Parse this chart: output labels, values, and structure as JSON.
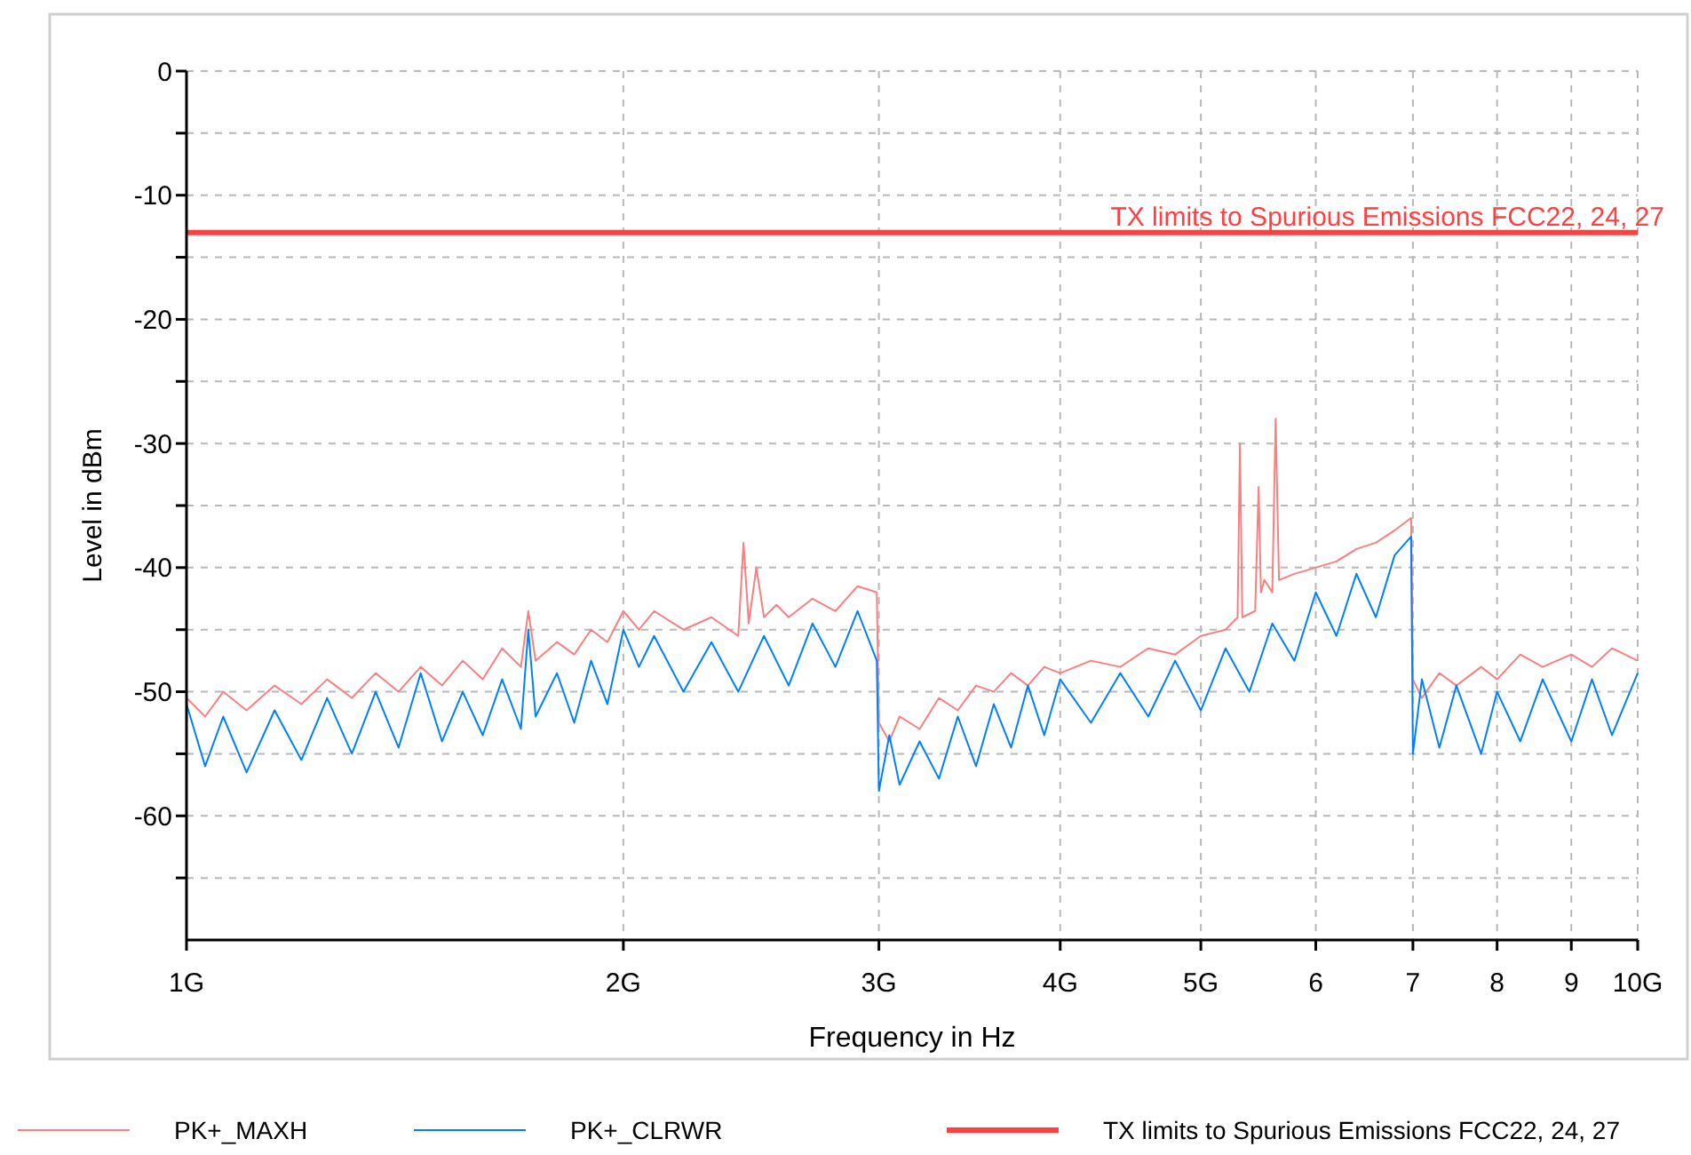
{
  "chart_data": {
    "type": "line",
    "xlabel": "Frequency in Hz",
    "ylabel": "Level in dBm",
    "log": "x",
    "xlim": [
      1,
      10
    ],
    "ylim": [
      -70,
      0
    ],
    "xticks": [
      {
        "value": 1,
        "label": "1G"
      },
      {
        "value": 2,
        "label": "2G"
      },
      {
        "value": 3,
        "label": "3G"
      },
      {
        "value": 4,
        "label": "4G"
      },
      {
        "value": 5,
        "label": "5G"
      },
      6,
      7,
      8,
      9,
      {
        "value": 10,
        "label": "10G"
      }
    ],
    "yticks": [
      0,
      {
        "value": -5,
        "label": null
      },
      -10,
      {
        "value": -15,
        "label": null
      },
      -20,
      {
        "value": -25,
        "label": null
      },
      -30,
      {
        "value": -35,
        "label": null
      },
      -40,
      {
        "value": -45,
        "label": null
      },
      -50,
      {
        "value": -55,
        "label": null
      },
      -60,
      {
        "value": -65,
        "label": null
      }
    ],
    "grid": true,
    "legend": "bottom",
    "line_style": "solid",
    "marker": "none",
    "ref_lines": [
      {
        "axis": "y",
        "value": -13,
        "label": "TX limits to Spurious Emissions FCC22, 24, 27",
        "color": "#ff4040"
      }
    ],
    "series": [
      {
        "name": "PK+_MAXH",
        "color": "#f88080",
        "x": [
          1,
          1.03,
          1.06,
          1.1,
          1.15,
          1.2,
          1.25,
          1.3,
          1.35,
          1.4,
          1.45,
          1.5,
          1.55,
          1.6,
          1.65,
          1.7,
          1.72,
          1.74,
          1.8,
          1.85,
          1.9,
          1.95,
          2,
          2.05,
          2.1,
          2.2,
          2.3,
          2.4,
          2.42,
          2.44,
          2.47,
          2.5,
          2.55,
          2.6,
          2.7,
          2.8,
          2.9,
          2.99,
          3,
          3.05,
          3.1,
          3.2,
          3.3,
          3.4,
          3.5,
          3.6,
          3.7,
          3.8,
          3.9,
          4,
          4.2,
          4.4,
          4.6,
          4.8,
          5,
          5.2,
          5.3,
          5.32,
          5.34,
          5.45,
          5.48,
          5.5,
          5.53,
          5.6,
          5.63,
          5.66,
          5.8,
          6,
          6.2,
          6.4,
          6.6,
          6.8,
          6.98,
          7,
          7.1,
          7.3,
          7.5,
          7.8,
          8,
          8.3,
          8.6,
          9,
          9.3,
          9.6,
          10
        ],
        "values": [
          -50.5,
          -52,
          -50,
          -51.5,
          -49.5,
          -51,
          -49,
          -50.5,
          -48.5,
          -50,
          -48,
          -49.5,
          -47.5,
          -49,
          -46.5,
          -48,
          -43.5,
          -47.5,
          -46,
          -47,
          -45,
          -46,
          -43.5,
          -45,
          -43.5,
          -45,
          -44,
          -45.5,
          -38,
          -44.5,
          -40,
          -44,
          -43,
          -44,
          -42.5,
          -43.5,
          -41.5,
          -42,
          -52.5,
          -54,
          -52,
          -53,
          -50.5,
          -51.5,
          -49.5,
          -50,
          -48.5,
          -49.5,
          -48,
          -48.5,
          -47.5,
          -48,
          -46.5,
          -47,
          -45.5,
          -45,
          -44,
          -30,
          -44,
          -43.5,
          -33.5,
          -42,
          -41,
          -42,
          -28,
          -41,
          -40.5,
          -40,
          -39.5,
          -38.5,
          -38,
          -37,
          -36,
          -49,
          -50.5,
          -48.5,
          -49.5,
          -48,
          -49,
          -47,
          -48,
          -47,
          -48,
          -46.5,
          -47.5
        ]
      },
      {
        "name": "PK+_CLRWR",
        "color": "#0080ff",
        "x": [
          1,
          1.03,
          1.06,
          1.1,
          1.15,
          1.2,
          1.25,
          1.3,
          1.35,
          1.4,
          1.45,
          1.5,
          1.55,
          1.6,
          1.65,
          1.7,
          1.72,
          1.74,
          1.8,
          1.85,
          1.9,
          1.95,
          2,
          2.05,
          2.1,
          2.2,
          2.3,
          2.4,
          2.5,
          2.6,
          2.7,
          2.8,
          2.9,
          2.99,
          3,
          3.05,
          3.1,
          3.2,
          3.3,
          3.4,
          3.5,
          3.6,
          3.7,
          3.8,
          3.9,
          4,
          4.2,
          4.4,
          4.6,
          4.8,
          5,
          5.2,
          5.4,
          5.6,
          5.8,
          6,
          6.2,
          6.4,
          6.6,
          6.8,
          6.98,
          7,
          7.1,
          7.3,
          7.5,
          7.8,
          8,
          8.3,
          8.6,
          9,
          9.3,
          9.6,
          10
        ],
        "values": [
          -51,
          -56,
          -52,
          -56.5,
          -51.5,
          -55.5,
          -50.5,
          -55,
          -50,
          -54.5,
          -48.5,
          -54,
          -50,
          -53.5,
          -49,
          -53,
          -45,
          -52,
          -48.5,
          -52.5,
          -47.5,
          -51,
          -45,
          -48,
          -45.5,
          -50,
          -46,
          -50,
          -45.5,
          -49.5,
          -44.5,
          -48,
          -43.5,
          -47.5,
          -58,
          -53.5,
          -57.5,
          -54,
          -57,
          -52,
          -56,
          -51,
          -54.5,
          -49.5,
          -53.5,
          -49,
          -52.5,
          -48.5,
          -52,
          -47.5,
          -51.5,
          -46.5,
          -50,
          -44.5,
          -47.5,
          -42,
          -45.5,
          -40.5,
          -44,
          -39,
          -37.5,
          -55,
          -49,
          -54.5,
          -49.5,
          -55,
          -50,
          -54,
          -49,
          -54,
          -49,
          -53.5,
          -48.5
        ]
      }
    ]
  }
}
